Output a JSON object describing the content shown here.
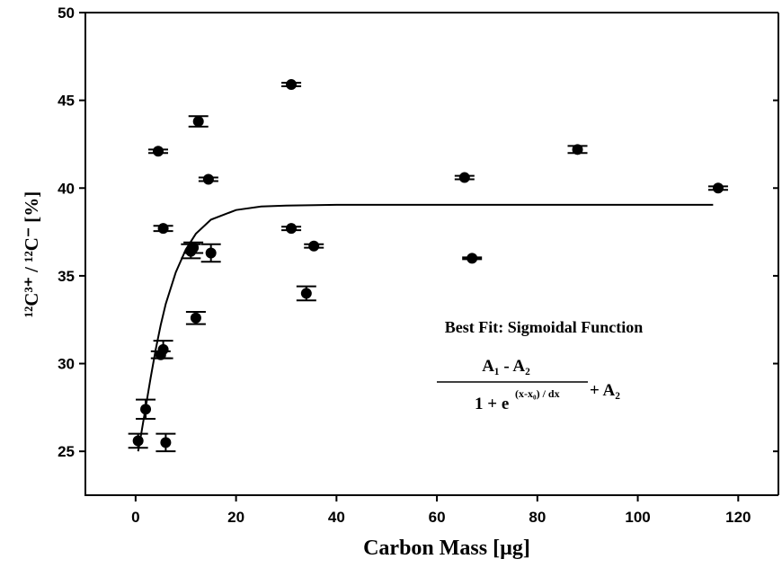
{
  "chart_data": {
    "type": "scatter",
    "x_label": "Carbon Mass [µg]",
    "y_label": "¹²C³⁺ / ¹²C⁻  [%]",
    "annotation": "Best Fit: Sigmoidal Function",
    "formula": {
      "numerator": "A₁ - A₂",
      "denominator": "1 + e",
      "exponent": "(x-x₀) / dx",
      "tail": "+ A₂"
    },
    "xlim": [
      -10,
      128
    ],
    "ylim": [
      22.5,
      50
    ],
    "xticks": [
      0,
      20,
      40,
      60,
      80,
      100,
      120
    ],
    "yticks": [
      25,
      30,
      35,
      40,
      45,
      50
    ],
    "color": "#000000",
    "series": [
      {
        "mode": "points",
        "x": [
          0.5,
          2,
          4.5,
          5,
          5.5,
          5.5,
          6,
          11,
          11.5,
          12,
          12.5,
          14.5,
          15,
          31,
          31,
          34,
          35.5,
          65.5,
          67,
          88,
          116
        ],
        "values": [
          25.6,
          27.4,
          42.1,
          30.5,
          37.7,
          30.8,
          25.5,
          36.4,
          36.6,
          32.6,
          43.8,
          40.5,
          36.3,
          45.9,
          37.7,
          34.0,
          36.7,
          40.6,
          36.0,
          42.2,
          40.0
        ],
        "errors": [
          0.4,
          0.55,
          0.1,
          0.2,
          0.15,
          0.5,
          0.5,
          0.4,
          0.3,
          0.35,
          0.3,
          0.1,
          0.5,
          0.1,
          0.1,
          0.4,
          0.1,
          0.1,
          0.05,
          0.2,
          0.1
        ]
      },
      {
        "mode": "line",
        "x": [
          0.5,
          1,
          2,
          3,
          4,
          5,
          6,
          8,
          10,
          12,
          15,
          20,
          25,
          30,
          40,
          115
        ],
        "values": [
          25.0,
          25.8,
          27.5,
          29.2,
          30.8,
          32.2,
          33.4,
          35.2,
          36.5,
          37.4,
          38.2,
          38.75,
          38.95,
          39.0,
          39.05,
          39.05
        ]
      }
    ]
  }
}
